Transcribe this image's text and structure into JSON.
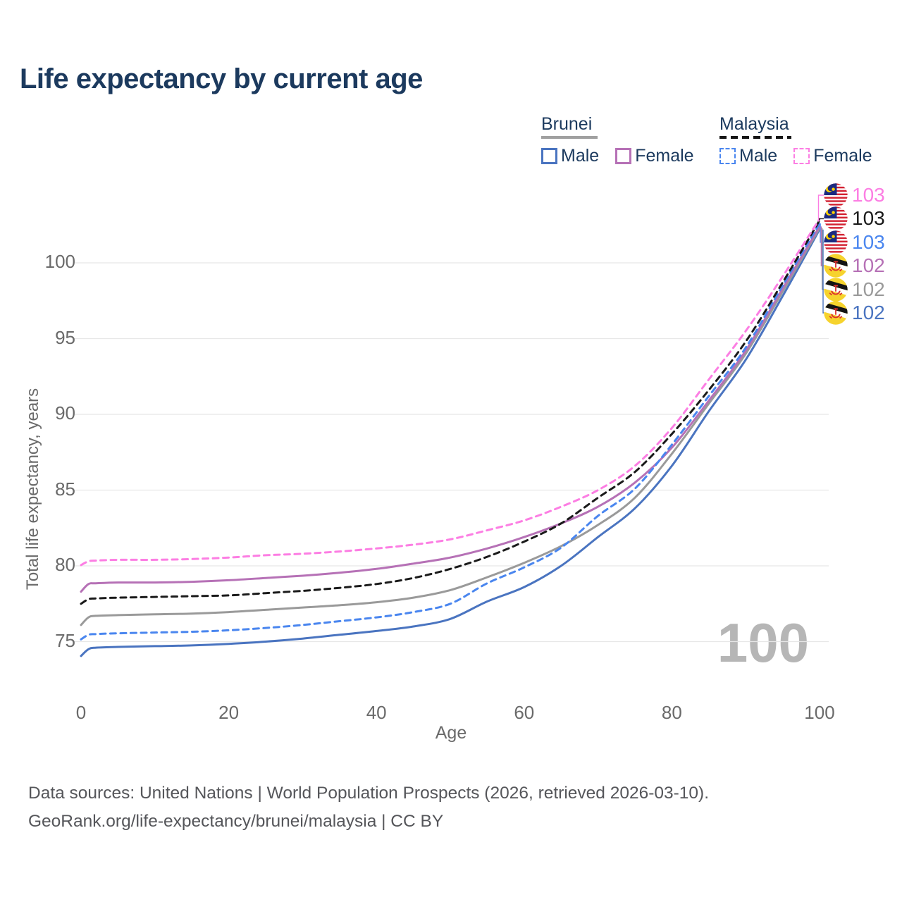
{
  "title": "Life expectancy by current age",
  "legend": {
    "groups": [
      {
        "name": "Brunei",
        "line_style": "solid",
        "color": "#a0a0a0",
        "items": [
          {
            "label": "Male",
            "color": "#4a74c0",
            "dashed": false
          },
          {
            "label": "Female",
            "color": "#b671b6",
            "dashed": false
          }
        ]
      },
      {
        "name": "Malaysia",
        "line_style": "dashed",
        "color": "#161616",
        "items": [
          {
            "label": "Male",
            "color": "#4a86ef",
            "dashed": true
          },
          {
            "label": "Female",
            "color": "#fc7ee3",
            "dashed": true
          }
        ]
      }
    ]
  },
  "chart_data": {
    "type": "line",
    "title": "Life expectancy by current age",
    "xlabel": "Age",
    "ylabel": "Total life expectancy, years",
    "xlim": [
      0,
      100
    ],
    "ylim": [
      73,
      103.5
    ],
    "xticks": [
      0,
      20,
      40,
      60,
      80,
      100
    ],
    "yticks": [
      75,
      80,
      85,
      90,
      95,
      100
    ],
    "grid": "horizontal-only",
    "gridline_color": "#e7e7e7",
    "ages": [
      0,
      1,
      2,
      5,
      10,
      15,
      20,
      25,
      30,
      35,
      40,
      45,
      50,
      55,
      60,
      65,
      70,
      75,
      80,
      85,
      90,
      95,
      100
    ],
    "series": [
      {
        "key": "bn_male",
        "name": "Brunei Male",
        "country": "Brunei",
        "sex": "Male",
        "color": "#4a74c0",
        "dashed": false,
        "values": [
          74.05,
          74.5,
          74.6,
          74.65,
          74.7,
          74.75,
          74.85,
          75.0,
          75.2,
          75.45,
          75.7,
          76.0,
          76.5,
          77.65,
          78.6,
          80.0,
          81.9,
          83.8,
          86.6,
          90.2,
          93.6,
          97.8,
          102.2
        ]
      },
      {
        "key": "bn_total",
        "name": "Brunei Total",
        "country": "Brunei",
        "sex": "Both",
        "color": "#9a9a9a",
        "dashed": false,
        "values": [
          76.1,
          76.6,
          76.7,
          76.75,
          76.8,
          76.85,
          76.95,
          77.1,
          77.25,
          77.4,
          77.6,
          77.9,
          78.4,
          79.25,
          80.2,
          81.3,
          82.7,
          84.5,
          87.4,
          90.7,
          94.0,
          98.1,
          102.3
        ]
      },
      {
        "key": "bn_female",
        "name": "Brunei Female",
        "country": "Brunei",
        "sex": "Female",
        "color": "#b671b6",
        "dashed": false,
        "values": [
          78.3,
          78.8,
          78.85,
          78.9,
          78.9,
          78.95,
          79.05,
          79.2,
          79.35,
          79.55,
          79.8,
          80.15,
          80.55,
          81.15,
          81.9,
          82.8,
          83.9,
          85.5,
          87.8,
          90.9,
          94.2,
          98.3,
          102.4
        ]
      },
      {
        "key": "my_male",
        "name": "Malaysia Male",
        "country": "Malaysia",
        "sex": "Male",
        "color": "#4a86ef",
        "dashed": true,
        "values": [
          75.15,
          75.45,
          75.5,
          75.55,
          75.6,
          75.65,
          75.75,
          75.9,
          76.1,
          76.35,
          76.6,
          76.95,
          77.5,
          78.85,
          79.9,
          81.2,
          83.3,
          85.1,
          88.0,
          91.2,
          94.4,
          98.5,
          102.6
        ]
      },
      {
        "key": "my_total",
        "name": "Malaysia Total",
        "country": "Malaysia",
        "sex": "Both",
        "color": "#1a1a1a",
        "dashed": true,
        "values": [
          77.5,
          77.8,
          77.85,
          77.9,
          77.95,
          78.0,
          78.05,
          78.2,
          78.35,
          78.55,
          78.8,
          79.2,
          79.8,
          80.6,
          81.6,
          82.8,
          84.5,
          86.2,
          88.7,
          91.6,
          94.8,
          98.7,
          102.8
        ]
      },
      {
        "key": "my_female",
        "name": "Malaysia Female",
        "country": "Malaysia",
        "sex": "Female",
        "color": "#fc7ee3",
        "dashed": true,
        "values": [
          80.05,
          80.3,
          80.35,
          80.4,
          80.4,
          80.45,
          80.55,
          80.7,
          80.8,
          80.95,
          81.15,
          81.4,
          81.75,
          82.35,
          83.0,
          83.9,
          85.0,
          86.6,
          89.1,
          92.3,
          95.5,
          99.1,
          102.9
        ]
      }
    ],
    "end_labels": [
      {
        "series": "my_female",
        "text": "103",
        "flag": "malaysia",
        "color": "#fc7ee3"
      },
      {
        "series": "my_total",
        "text": "103",
        "flag": "malaysia",
        "color": "#1a1a1a"
      },
      {
        "series": "my_male",
        "text": "103",
        "flag": "malaysia",
        "color": "#4a86ef"
      },
      {
        "series": "bn_female",
        "text": "102",
        "flag": "brunei",
        "color": "#b671b6"
      },
      {
        "series": "bn_total",
        "text": "102",
        "flag": "brunei",
        "color": "#9a9a9a"
      },
      {
        "series": "bn_male",
        "text": "102",
        "flag": "brunei",
        "color": "#4a74c0"
      }
    ]
  },
  "watermark": "100",
  "footer": {
    "line1": "Data sources: United Nations | World Population Prospects (2026, retrieved 2026-03-10).",
    "line2": "GeoRank.org/life-expectancy/brunei/malaysia | CC BY"
  }
}
